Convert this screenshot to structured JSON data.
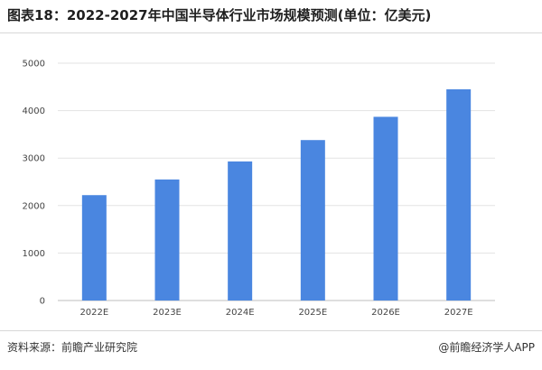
{
  "title": "图表18：2022-2027年中国半导体行业市场规模预测(单位：亿美元)",
  "footer": {
    "source": "资料来源：前瞻产业研究院",
    "brand": "@前瞻经济学人APP"
  },
  "colors": {
    "bar": "#4a86e0",
    "grid": "#e3e3e3"
  },
  "chart_data": {
    "type": "bar",
    "categories": [
      "2022E",
      "2023E",
      "2024E",
      "2025E",
      "2026E",
      "2027E"
    ],
    "values": [
      2220,
      2550,
      2930,
      3380,
      3870,
      4450
    ],
    "ylim": [
      0,
      5000
    ],
    "yticks": [
      "0",
      "1000",
      "2000",
      "3000",
      "4000",
      "5000"
    ],
    "grid": true
  }
}
